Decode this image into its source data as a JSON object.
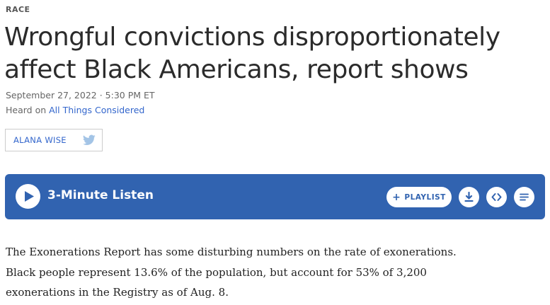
{
  "article": {
    "slug": "RACE",
    "headline": "Wrongful convictions disproportionately affect Black Americans, report shows",
    "dateline": "September 27, 2022 · 5:30 PM ET",
    "heard_prefix": "Heard on ",
    "heard_show": "All Things Considered",
    "byline_name": "ALANA WISE",
    "body_paragraph": "The Exonerations Report has some disturbing numbers on the rate of exonerations. Black people represent 13.6% of the population, but account for 53% of 3,200 exonerations in the Registry as of Aug. 8."
  },
  "player": {
    "listen_label": "3-Minute Listen",
    "playlist_plus": "+",
    "playlist_label": "PLAYLIST",
    "background_color": "#3163b0",
    "icons": [
      "play-icon",
      "download-icon",
      "embed-icon",
      "transcript-icon"
    ]
  },
  "colors": {
    "link": "#3366cc",
    "twitter": "#a3c4e6"
  }
}
